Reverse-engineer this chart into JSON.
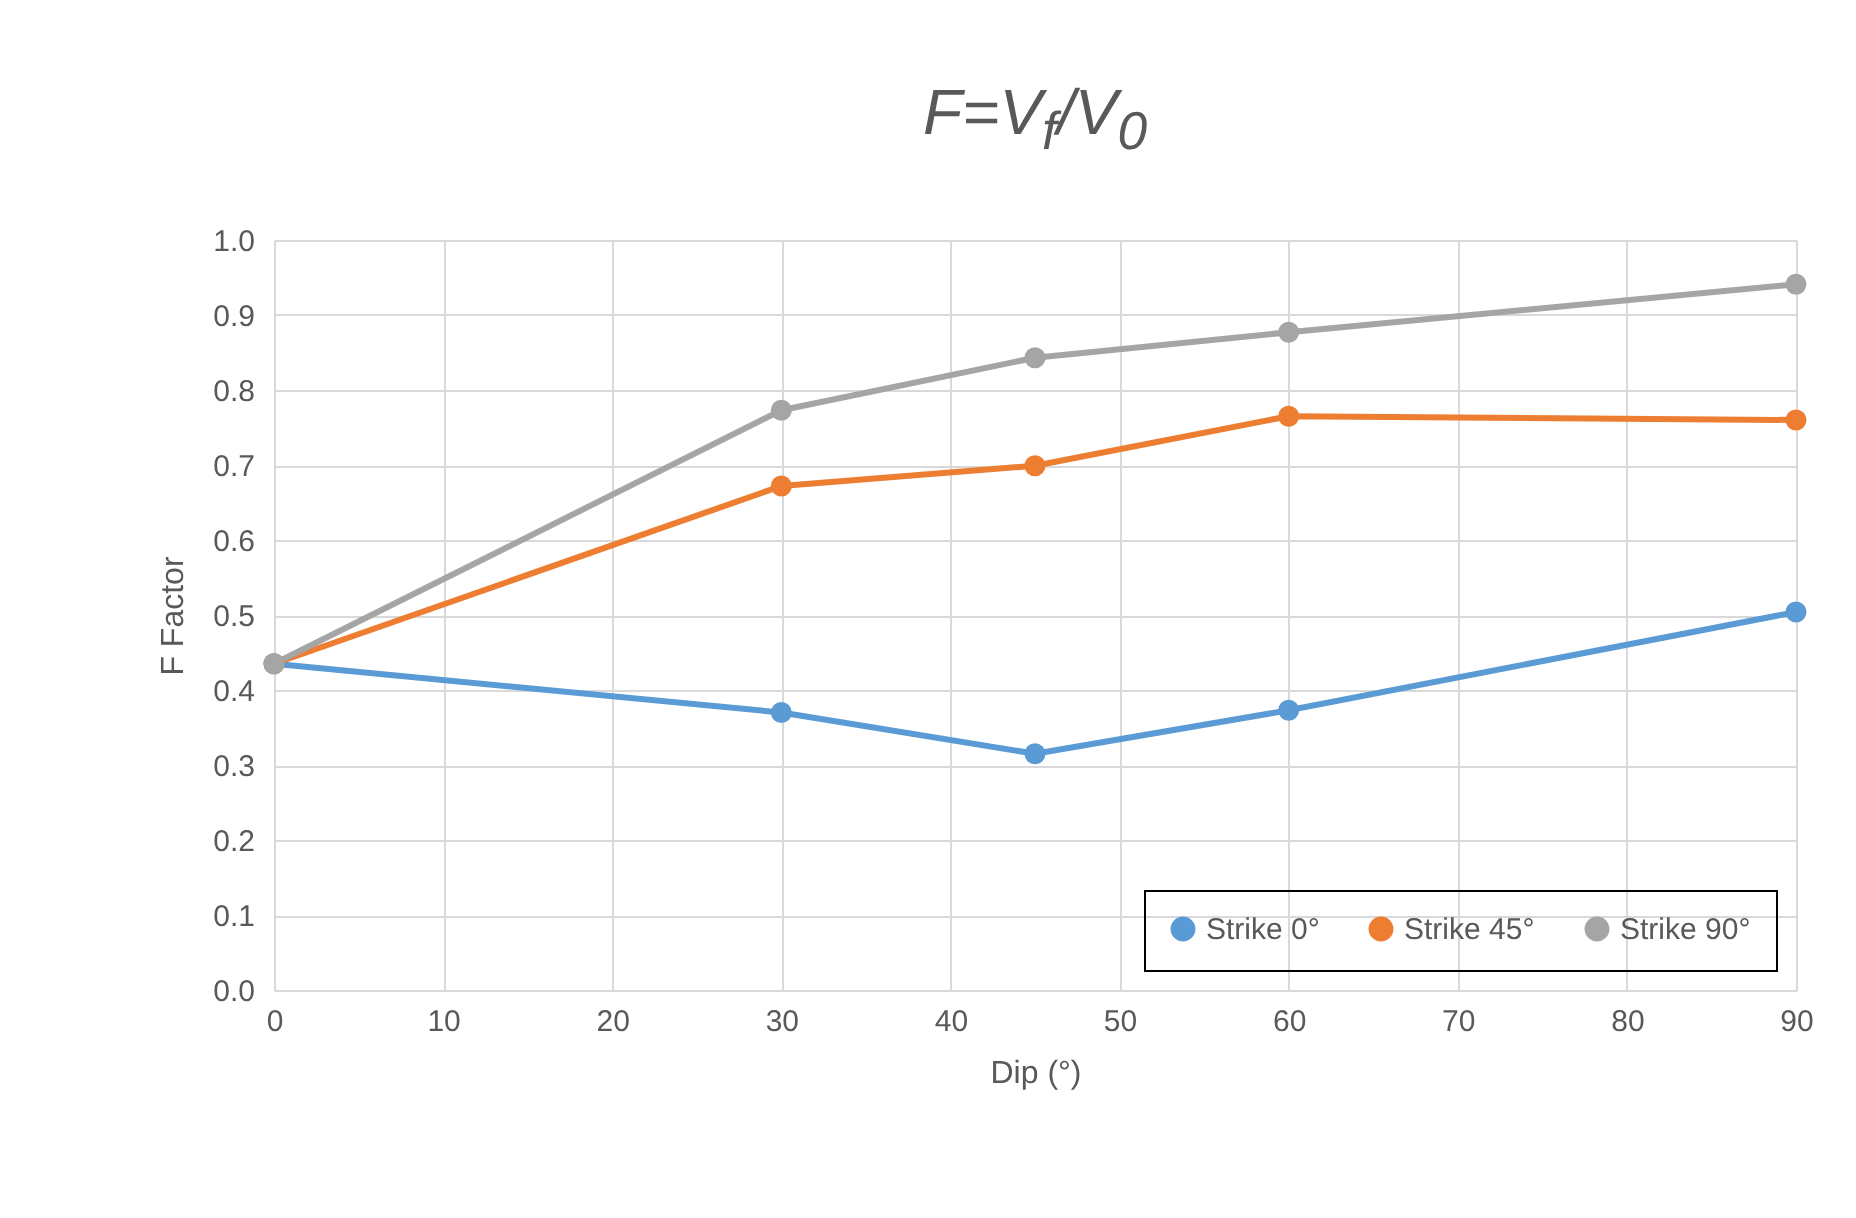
{
  "chart_data": {
    "type": "line",
    "title": "F=V$_{f}$/V$_{0}$",
    "xlabel": "Dip (°)",
    "ylabel": "F Factor",
    "x": [
      0,
      30,
      45,
      60,
      90
    ],
    "series": [
      {
        "name": "Strike 0°",
        "color": "#5b9bd5",
        "values": [
          0.435,
          0.37,
          0.315,
          0.373,
          0.504
        ]
      },
      {
        "name": "Strike 45°",
        "color": "#ed7d31",
        "values": [
          0.435,
          0.672,
          0.699,
          0.765,
          0.76
        ]
      },
      {
        "name": "Strike 90°",
        "color": "#a5a5a5",
        "values": [
          0.435,
          0.773,
          0.843,
          0.877,
          0.941
        ]
      }
    ],
    "xlim": [
      0,
      90
    ],
    "xticks": [
      0,
      10,
      20,
      30,
      40,
      50,
      60,
      70,
      80,
      90
    ],
    "ylim": [
      0,
      1
    ],
    "yticks": [
      {
        "value": 0,
        "label": "0.0"
      },
      {
        "value": 0.1,
        "label": "0.1"
      },
      {
        "value": 0.2,
        "label": "0.2"
      },
      {
        "value": 0.3,
        "label": "0.3"
      },
      {
        "value": 0.4,
        "label": "0.4"
      },
      {
        "value": 0.5,
        "label": "0.5"
      },
      {
        "value": 0.6,
        "label": "0.6"
      },
      {
        "value": 0.7,
        "label": "0.7"
      },
      {
        "value": 0.8,
        "label": "0.8"
      },
      {
        "value": 0.9,
        "label": "0.9"
      },
      {
        "value": 1,
        "label": "1.0"
      }
    ],
    "grid": true,
    "legend": "bottom right",
    "marker": "circle",
    "line_style": "solid"
  }
}
